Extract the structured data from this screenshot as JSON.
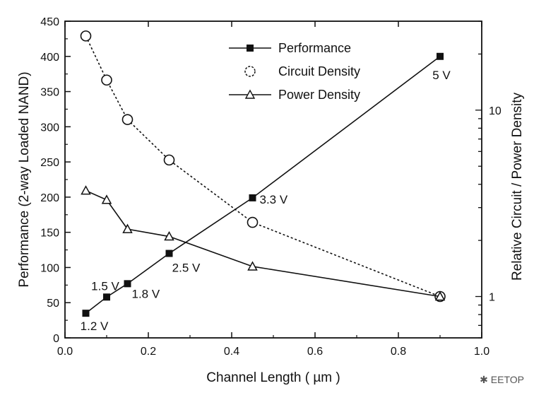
{
  "chart_data": {
    "type": "line",
    "xlabel": "Channel Length ( µm )",
    "ylabel": "Performance (2-way Loaded NAND)",
    "y2label": "Relative Circuit / Power Density",
    "xlim": [
      0.0,
      1.0
    ],
    "ylim": [
      0,
      450
    ],
    "y2scale": "log",
    "y2lim": [
      0.6,
      30
    ],
    "x_ticks": [
      "0.0",
      "0.2",
      "0.4",
      "0.6",
      "0.8",
      "1.0"
    ],
    "y_ticks": [
      "0",
      "50",
      "100",
      "150",
      "200",
      "250",
      "300",
      "350",
      "400",
      "450"
    ],
    "y2_ticks": [
      "1",
      "10"
    ],
    "legend_position": "top-right",
    "series": [
      {
        "name": "Performance",
        "axis": "left",
        "marker": "filled-square",
        "line": "solid",
        "x": [
          0.05,
          0.1,
          0.15,
          0.25,
          0.45,
          0.9
        ],
        "y": [
          35,
          58,
          77,
          120,
          199,
          400
        ]
      },
      {
        "name": "Circuit Density",
        "axis": "right",
        "marker": "open-circle",
        "line": "dotted",
        "x": [
          0.05,
          0.1,
          0.15,
          0.25,
          0.45,
          0.9
        ],
        "y": [
          25,
          14.5,
          8.9,
          5.4,
          2.5,
          1.0
        ]
      },
      {
        "name": "Power Density",
        "axis": "right",
        "marker": "open-triangle",
        "line": "solid",
        "x": [
          0.05,
          0.1,
          0.15,
          0.25,
          0.45,
          0.9
        ],
        "y": [
          3.7,
          3.3,
          2.3,
          2.1,
          1.45,
          1.0
        ]
      }
    ],
    "annotations": [
      {
        "text": "1.2 V",
        "x": 0.05,
        "y": 35,
        "pos": "below"
      },
      {
        "text": "1.5 V",
        "x": 0.1,
        "y": 58,
        "pos": "above-left"
      },
      {
        "text": "1.8 V",
        "x": 0.15,
        "y": 77,
        "pos": "below-right"
      },
      {
        "text": "2.5 V",
        "x": 0.25,
        "y": 120,
        "pos": "below"
      },
      {
        "text": "3.3 V",
        "x": 0.45,
        "y": 199,
        "pos": "right"
      },
      {
        "text": "5 V",
        "x": 0.9,
        "y": 400,
        "pos": "below"
      }
    ]
  },
  "watermark": "EETOP"
}
